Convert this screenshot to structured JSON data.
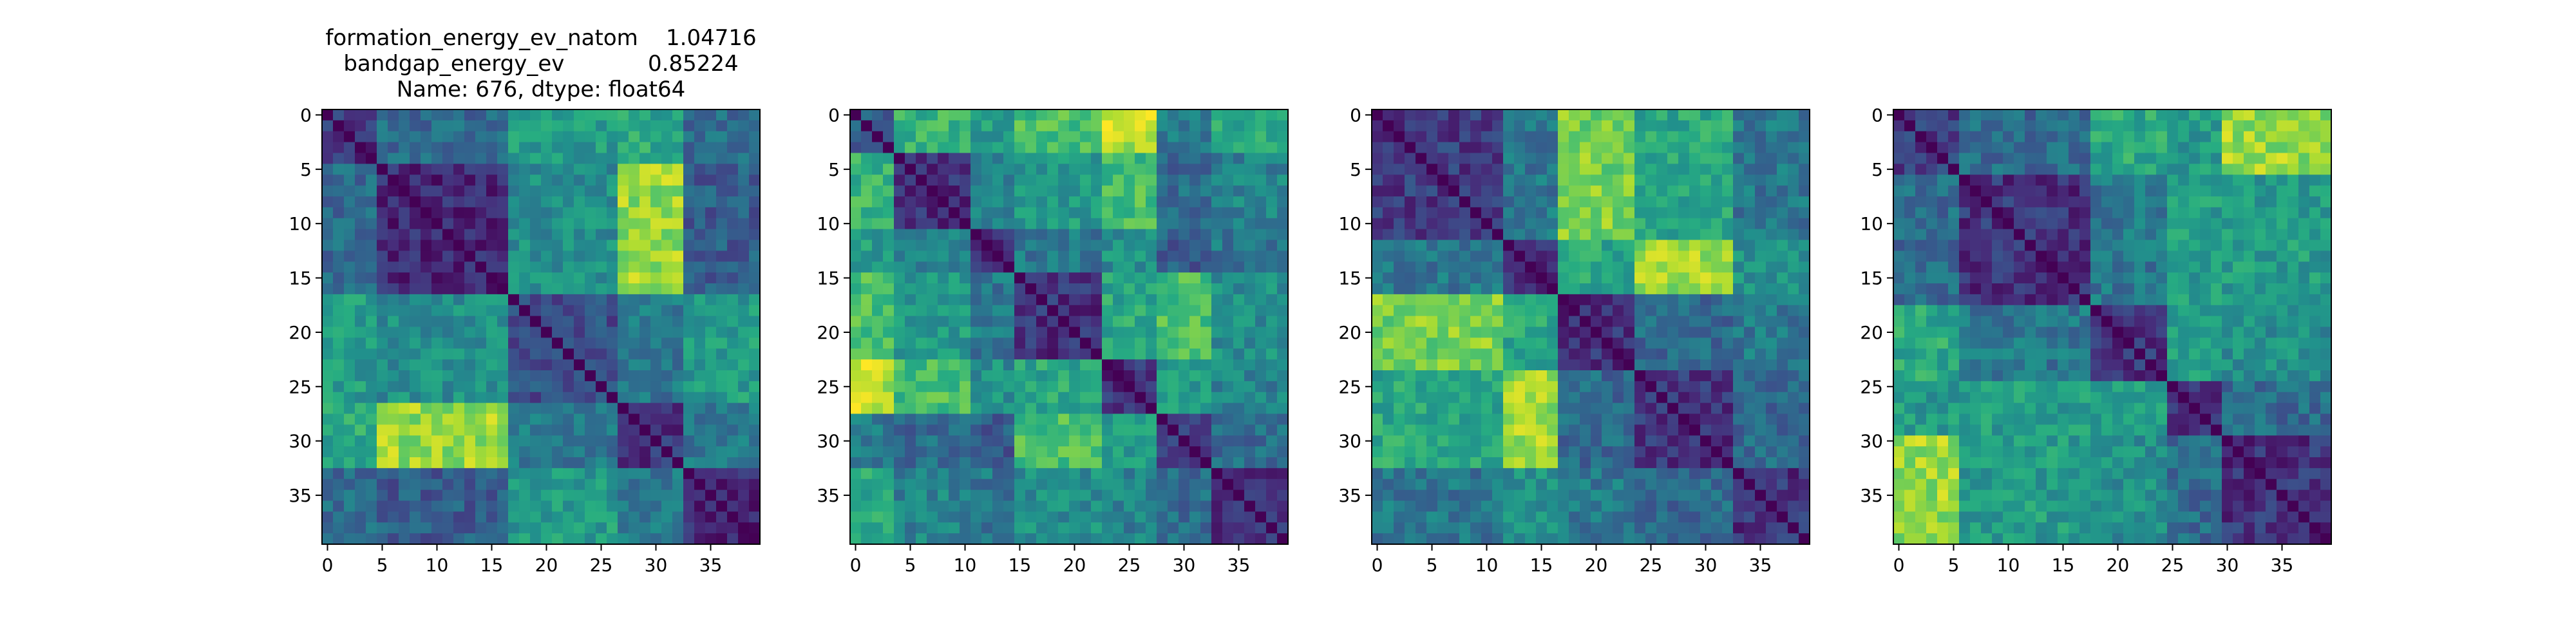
{
  "chart_data": [
    {
      "type": "heatmap",
      "colormap": "viridis",
      "title": [
        "formation_energy_ev_natom    1.04716",
        "bandgap_energy_ev            0.85224",
        "Name: 676, dtype: float64"
      ],
      "rows": 40,
      "cols": 40,
      "xticks": [
        0,
        5,
        10,
        15,
        20,
        25,
        30,
        35
      ],
      "yticks": [
        0,
        5,
        10,
        15,
        20,
        25,
        30,
        35
      ],
      "xlim": [
        -0.5,
        39.5
      ],
      "ylim": [
        39.5,
        -0.5
      ],
      "diagonal_value": 0,
      "groups": [
        [
          0,
          5
        ],
        [
          5,
          17
        ],
        [
          17,
          27
        ],
        [
          27,
          33
        ],
        [
          33,
          40
        ]
      ],
      "block_levels": [
        [
          0.15,
          0.35,
          0.55,
          0.6,
          0.35
        ],
        [
          0.35,
          0.12,
          0.5,
          0.85,
          0.3
        ],
        [
          0.55,
          0.5,
          0.25,
          0.4,
          0.55
        ],
        [
          0.6,
          0.85,
          0.4,
          0.15,
          0.4
        ],
        [
          0.35,
          0.3,
          0.55,
          0.4,
          0.12
        ]
      ]
    },
    {
      "type": "heatmap",
      "colormap": "viridis",
      "title": "",
      "rows": 40,
      "cols": 40,
      "xticks": [
        0,
        5,
        10,
        15,
        20,
        25,
        30,
        35
      ],
      "yticks": [
        0,
        5,
        10,
        15,
        20,
        25,
        30,
        35
      ],
      "xlim": [
        -0.5,
        39.5
      ],
      "ylim": [
        39.5,
        -0.5
      ],
      "diagonal_value": 0,
      "groups": [
        [
          0,
          4
        ],
        [
          4,
          11
        ],
        [
          11,
          15
        ],
        [
          15,
          23
        ],
        [
          23,
          28
        ],
        [
          28,
          33
        ],
        [
          33,
          40
        ]
      ],
      "block_levels": [
        [
          0.3,
          0.65,
          0.55,
          0.7,
          0.9,
          0.4,
          0.6
        ],
        [
          0.65,
          0.15,
          0.45,
          0.55,
          0.7,
          0.35,
          0.45
        ],
        [
          0.55,
          0.45,
          0.15,
          0.4,
          0.5,
          0.3,
          0.4
        ],
        [
          0.7,
          0.55,
          0.4,
          0.15,
          0.6,
          0.7,
          0.5
        ],
        [
          0.9,
          0.7,
          0.5,
          0.6,
          0.15,
          0.55,
          0.45
        ],
        [
          0.4,
          0.35,
          0.3,
          0.7,
          0.55,
          0.15,
          0.35
        ],
        [
          0.6,
          0.45,
          0.4,
          0.5,
          0.45,
          0.35,
          0.15
        ]
      ]
    },
    {
      "type": "heatmap",
      "colormap": "viridis",
      "title": "",
      "rows": 40,
      "cols": 40,
      "xticks": [
        0,
        5,
        10,
        15,
        20,
        25,
        30,
        35
      ],
      "yticks": [
        0,
        5,
        10,
        15,
        20,
        25,
        30,
        35
      ],
      "xlim": [
        -0.5,
        39.5
      ],
      "ylim": [
        39.5,
        -0.5
      ],
      "diagonal_value": 0,
      "groups": [
        [
          0,
          12
        ],
        [
          12,
          17
        ],
        [
          17,
          24
        ],
        [
          24,
          33
        ],
        [
          33,
          40
        ]
      ],
      "block_levels": [
        [
          0.18,
          0.4,
          0.8,
          0.6,
          0.4
        ],
        [
          0.4,
          0.15,
          0.6,
          0.85,
          0.5
        ],
        [
          0.8,
          0.6,
          0.15,
          0.35,
          0.4
        ],
        [
          0.6,
          0.85,
          0.35,
          0.15,
          0.35
        ],
        [
          0.4,
          0.5,
          0.4,
          0.35,
          0.15
        ]
      ]
    },
    {
      "type": "heatmap",
      "colormap": "viridis",
      "title": "",
      "rows": 40,
      "cols": 40,
      "xticks": [
        0,
        5,
        10,
        15,
        20,
        25,
        30,
        35
      ],
      "yticks": [
        0,
        5,
        10,
        15,
        20,
        25,
        30,
        35
      ],
      "xlim": [
        -0.5,
        39.5
      ],
      "ylim": [
        39.5,
        -0.5
      ],
      "diagonal_value": 0,
      "groups": [
        [
          0,
          6
        ],
        [
          6,
          18
        ],
        [
          18,
          25
        ],
        [
          25,
          30
        ],
        [
          30,
          40
        ]
      ],
      "block_levels": [
        [
          0.18,
          0.35,
          0.6,
          0.55,
          0.85
        ],
        [
          0.35,
          0.15,
          0.4,
          0.55,
          0.55
        ],
        [
          0.6,
          0.4,
          0.15,
          0.55,
          0.5
        ],
        [
          0.55,
          0.55,
          0.55,
          0.15,
          0.35
        ],
        [
          0.85,
          0.55,
          0.5,
          0.35,
          0.15
        ]
      ]
    }
  ]
}
